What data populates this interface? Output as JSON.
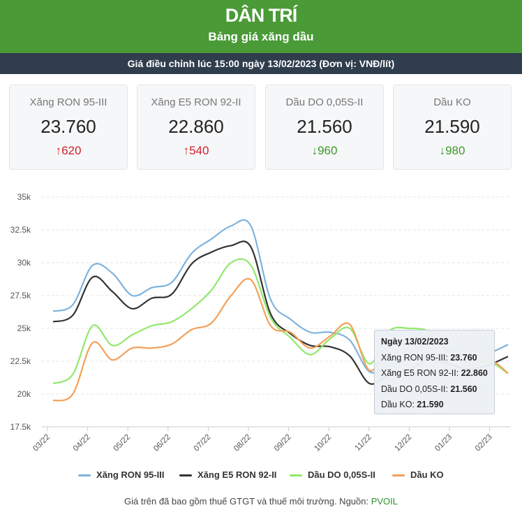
{
  "header": {
    "logo": "DÂN TRÍ",
    "title": "Bảng giá xăng dầu",
    "subtitle": "Giá điều chỉnh lúc 15:00 ngày 13/02/2023 (Đơn vị: VNĐ/lít)"
  },
  "cards": [
    {
      "name": "Xăng RON 95-III",
      "price": "23.760",
      "arrow": "↑",
      "change": "620",
      "direction": "up"
    },
    {
      "name": "Xăng E5 RON 92-II",
      "price": "22.860",
      "arrow": "↑",
      "change": "540",
      "direction": "up"
    },
    {
      "name": "Dầu DO 0,05S-II",
      "price": "21.560",
      "arrow": "↓",
      "change": "960",
      "direction": "down"
    },
    {
      "name": "Dầu KO",
      "price": "21.590",
      "arrow": "↓",
      "change": "980",
      "direction": "down"
    }
  ],
  "tooltip": {
    "date": "Ngày 13/02/2023",
    "rows": [
      {
        "label": "Xăng RON 95-III: ",
        "value": "23.760"
      },
      {
        "label": "Xăng E5 RON 92-II: ",
        "value": "22.860"
      },
      {
        "label": "Dầu DO 0,05S-II: ",
        "value": "21.560"
      },
      {
        "label": "Dầu KO: ",
        "value": "21.590"
      }
    ]
  },
  "footer": {
    "text": "Giá trên đã bao gồm thuế GTGT và thuế môi trường. Nguồn: ",
    "source": "PVOIL"
  },
  "chart_data": {
    "type": "line",
    "ylim": [
      17500,
      35000
    ],
    "yticks": [
      17500,
      20000,
      22500,
      25000,
      27500,
      30000,
      32500,
      35000
    ],
    "ytick_labels": [
      "17.5k",
      "20k",
      "22.5k",
      "25k",
      "27.5k",
      "30k",
      "32.5k",
      "35k"
    ],
    "xticks": [
      "03/22",
      "04/22",
      "05/22",
      "06/22",
      "07/22",
      "08/22",
      "09/22",
      "10/22",
      "11/22",
      "12/22",
      "01/23",
      "02/23"
    ],
    "x": [
      "03/22 start",
      "03/22 mid",
      "03/22 end",
      "04/22 mid",
      "04/22 end",
      "05/22 mid",
      "05/22 end",
      "06/22 mid",
      "06/22 end",
      "07/22 mid",
      "07/22 end",
      "08/22 mid",
      "08/22 end",
      "09/22 mid",
      "09/22 end",
      "10/22 mid",
      "10/22 end",
      "11/22 mid",
      "11/22 end",
      "12/22 mid",
      "12/22 end",
      "01/23 mid",
      "01/23 end",
      "02/23 mid"
    ],
    "legend_position": "bottom",
    "series": [
      {
        "name": "Xăng RON 95-III",
        "color": "#7eb3dd",
        "values": [
          26300,
          26800,
          29800,
          29200,
          27500,
          28100,
          28500,
          30700,
          31800,
          32800,
          32800,
          27200,
          25700,
          24700,
          24700,
          24100,
          21700,
          22200,
          22700,
          23900,
          23400,
          22900,
          23100,
          23760
        ]
      },
      {
        "name": "Xăng E5 RON 92-II",
        "color": "#333333",
        "values": [
          25500,
          26000,
          28900,
          27800,
          26500,
          27300,
          27600,
          29900,
          30800,
          31300,
          31200,
          26100,
          24600,
          23700,
          23600,
          22900,
          20800,
          21500,
          21800,
          22700,
          22300,
          21900,
          22200,
          22860
        ]
      },
      {
        "name": "Dầu DO 0,05S-II",
        "color": "#90e86a",
        "values": [
          20800,
          21500,
          25200,
          23700,
          24500,
          25200,
          25500,
          26500,
          27900,
          30000,
          29800,
          25800,
          24300,
          23000,
          24200,
          25000,
          22300,
          24800,
          25000,
          24800,
          23900,
          22200,
          22500,
          21560
        ]
      },
      {
        "name": "Dầu KO",
        "color": "#f3a05a",
        "values": [
          19500,
          20000,
          23900,
          22600,
          23500,
          23500,
          23800,
          24900,
          25400,
          27500,
          28700,
          25200,
          24700,
          23500,
          24400,
          25300,
          21800,
          23600,
          23800,
          24400,
          23200,
          22400,
          22700,
          21590
        ]
      }
    ]
  }
}
